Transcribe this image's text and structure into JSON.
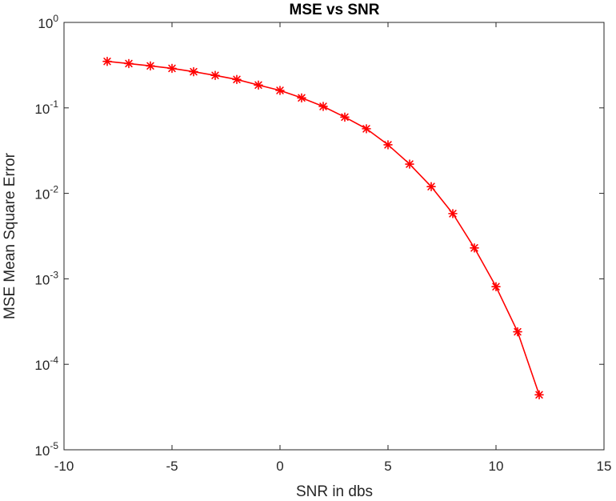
{
  "chart_data": {
    "type": "line",
    "title": "MSE vs SNR",
    "xlabel": "SNR in dbs",
    "ylabel": "MSE Mean Square Error",
    "xlim": [
      -10,
      15
    ],
    "ylim": [
      1e-05,
      1
    ],
    "yscale": "log",
    "grid": false,
    "legend": "none",
    "x_ticks": [
      {
        "value": -10,
        "label": "-10"
      },
      {
        "value": -5,
        "label": "-5"
      },
      {
        "value": 0,
        "label": "0"
      },
      {
        "value": 5,
        "label": "5"
      },
      {
        "value": 10,
        "label": "10"
      },
      {
        "value": 15,
        "label": "15"
      }
    ],
    "y_ticks": [
      {
        "value": 1,
        "base": "10",
        "exp": "0"
      },
      {
        "value": 0.1,
        "base": "10",
        "exp": "-1"
      },
      {
        "value": 0.01,
        "base": "10",
        "exp": "-2"
      },
      {
        "value": 0.001,
        "base": "10",
        "exp": "-3"
      },
      {
        "value": 0.0001,
        "base": "10",
        "exp": "-4"
      },
      {
        "value": 1e-05,
        "base": "10",
        "exp": "-5"
      }
    ],
    "series": [
      {
        "color": "#ff0000",
        "marker": "asterisk",
        "x": [
          -8,
          -7,
          -6,
          -5,
          -4,
          -3,
          -2,
          -1,
          0,
          1,
          2,
          3,
          4,
          5,
          6,
          7,
          8,
          9,
          10,
          11,
          12
        ],
        "y": [
          0.35,
          0.33,
          0.31,
          0.29,
          0.265,
          0.24,
          0.215,
          0.185,
          0.16,
          0.131,
          0.104,
          0.078,
          0.057,
          0.037,
          0.022,
          0.012,
          0.0058,
          0.0023,
          0.00081,
          0.00024,
          4.4e-05
        ]
      }
    ]
  }
}
